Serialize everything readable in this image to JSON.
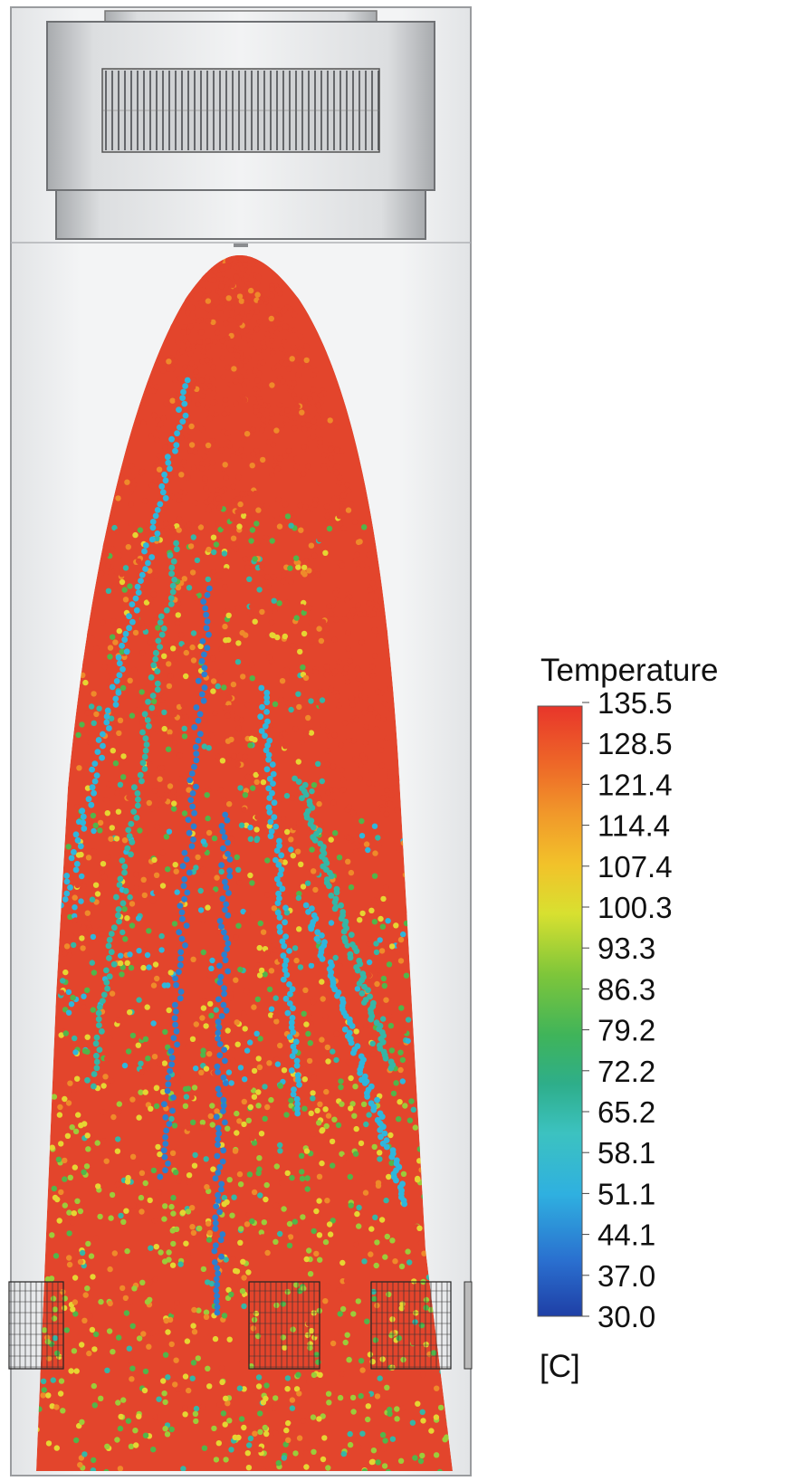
{
  "legend": {
    "title": "Temperature",
    "unit": "[C]",
    "ticks": [
      "135.5",
      "128.5",
      "121.4",
      "114.4",
      "107.4",
      "100.3",
      "93.3",
      "86.3",
      "79.2",
      "72.2",
      "65.2",
      "58.1",
      "51.1",
      "44.1",
      "37.0",
      "30.0"
    ],
    "range": [
      30.0,
      135.5
    ],
    "colorscale": [
      "#1f3fa6",
      "#2a6fcf",
      "#2fb0e0",
      "#3cc2c0",
      "#2eae8a",
      "#3fb45a",
      "#7ec63a",
      "#d8e030",
      "#f2c22a",
      "#f19a2a",
      "#ee6a28",
      "#e8352a"
    ]
  },
  "colors": {
    "vessel": "#f1f2f3",
    "vessel_edge": "#8a8c8f",
    "cap": "#d7d9db",
    "grille": "#6b6e72"
  }
}
